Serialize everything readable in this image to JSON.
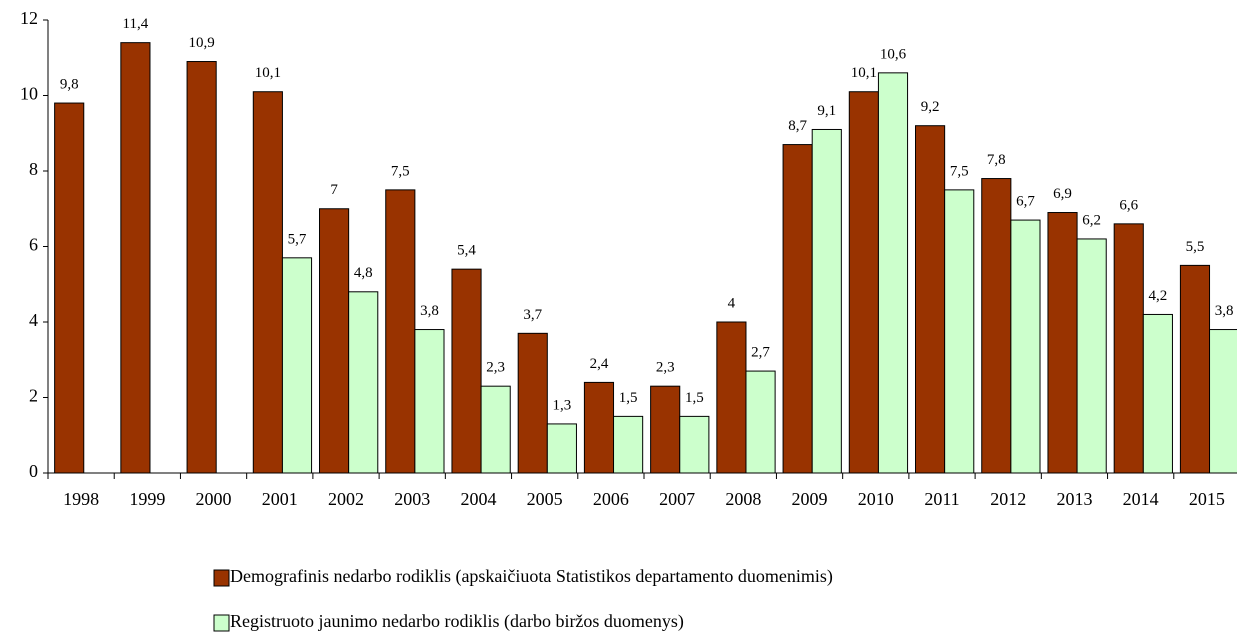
{
  "chart_data": {
    "type": "bar",
    "categories": [
      "1998",
      "1999",
      "2000",
      "2001",
      "2002",
      "2003",
      "2004",
      "2005",
      "2006",
      "2007",
      "2008",
      "2009",
      "2010",
      "2011",
      "2012",
      "2013",
      "2014",
      "2015"
    ],
    "series": [
      {
        "name": "Demografinis nedarbo rodiklis (apskaičiuota Statistikos departamento duomenimis)",
        "color": "#993300",
        "values": [
          9.8,
          11.4,
          10.9,
          10.1,
          7,
          7.5,
          5.4,
          3.7,
          2.4,
          2.3,
          4,
          8.7,
          10.1,
          9.2,
          7.8,
          6.9,
          6.6,
          5.5
        ],
        "value_labels": [
          "9,8",
          "11,4",
          "10,9",
          "10,1",
          "7",
          "7,5",
          "5,4",
          "3,7",
          "2,4",
          "2,3",
          "4",
          "8,7",
          "10,1",
          "9,2",
          "7,8",
          "6,9",
          "6,6",
          "5,5"
        ]
      },
      {
        "name": "Registruoto jaunimo nedarbo rodiklis (darbo biržos duomenys)",
        "color": "#ccffcc",
        "values": [
          null,
          null,
          null,
          5.7,
          4.8,
          3.8,
          2.3,
          1.3,
          1.5,
          1.5,
          2.7,
          9.1,
          10.6,
          7.5,
          6.7,
          6.2,
          4.2,
          3.8
        ],
        "value_labels": [
          null,
          null,
          null,
          "5,7",
          "4,8",
          "3,8",
          "2,3",
          "1,3",
          "1,5",
          "1,5",
          "2,7",
          "9,1",
          "10,6",
          "7,5",
          "6,7",
          "6,2",
          "4,2",
          "3,8"
        ]
      }
    ],
    "ylim": [
      0,
      12
    ],
    "yticks": [
      0,
      2,
      4,
      6,
      8,
      10,
      12
    ],
    "grid": false
  }
}
